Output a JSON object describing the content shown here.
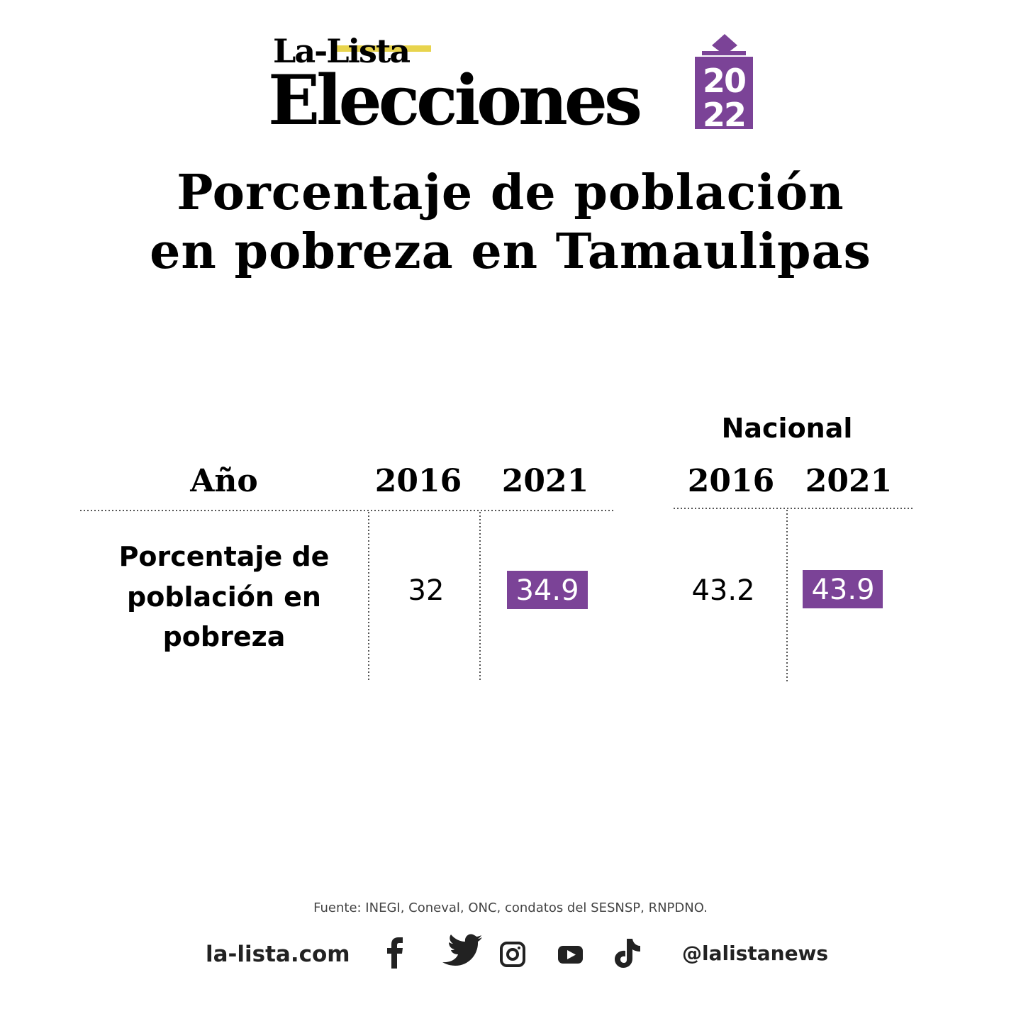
{
  "header": {
    "brand": "La-Lista",
    "section": "Elecciones",
    "year_top": "20",
    "year_bottom": "22"
  },
  "title_lines": [
    "Porcentaje de población",
    "en pobreza en Tamaulipas"
  ],
  "table": {
    "group_header": "Nacional",
    "columns": [
      "Año",
      "2016",
      "2021",
      "2016",
      "2021"
    ],
    "row": {
      "label_lines": [
        "Porcentaje de",
        "población en",
        "pobreza"
      ],
      "values": [
        32,
        34.9,
        43.2,
        43.9
      ]
    }
  },
  "footer": {
    "source": "Fuente: INEGI, Coneval, ONC, condatos del  SESNSP, RNPDNO.",
    "site": "la-lista.com",
    "handle": "@lalistanews"
  }
}
